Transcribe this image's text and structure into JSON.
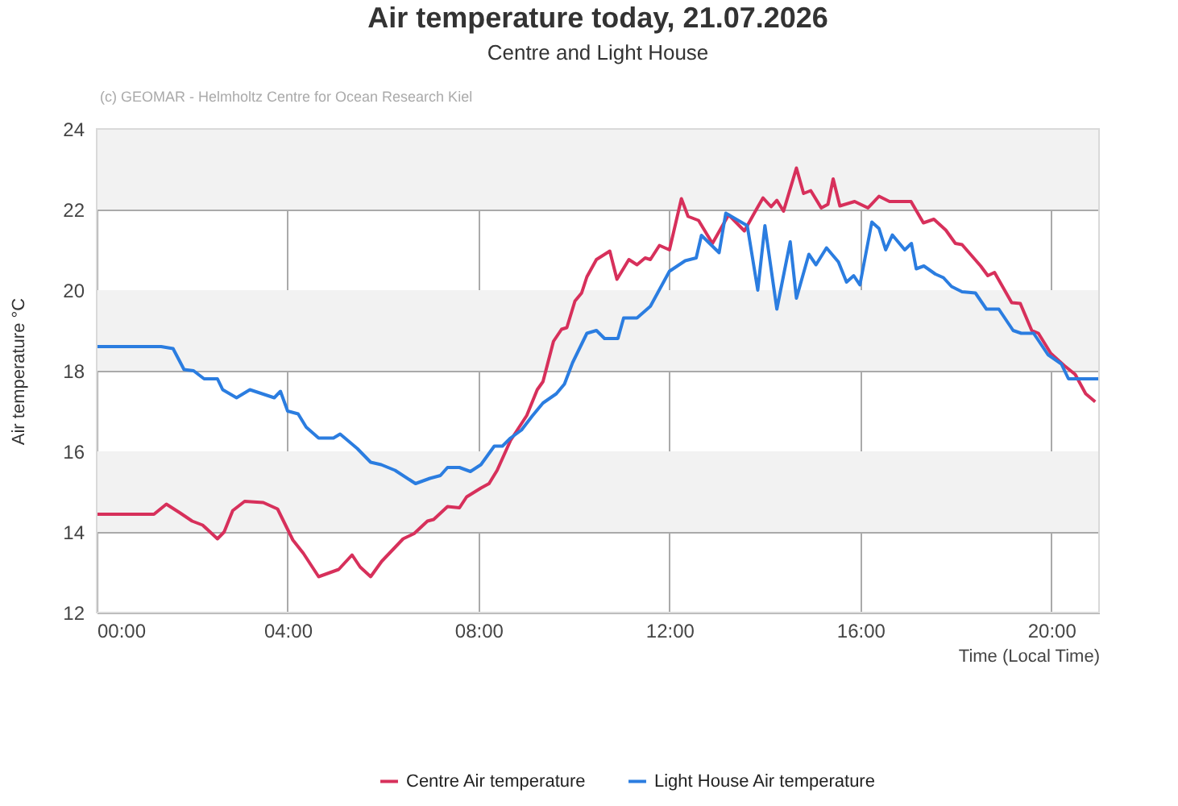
{
  "chart_data": {
    "type": "line",
    "title": "Air temperature today, 21.07.2026",
    "subtitle": "Centre and Light House",
    "annotations": [
      "(c) GEOMAR - Helmholtz Centre for Ocean Research Kiel"
    ],
    "xlabel": "Time (Local Time)",
    "ylabel": "Air temperature °C",
    "xlim": [
      0,
      21
    ],
    "xticks": [
      {
        "value": 0,
        "label": "00:00"
      },
      {
        "value": 4,
        "label": "04:00"
      },
      {
        "value": 8,
        "label": "08:00"
      },
      {
        "value": 12,
        "label": "12:00"
      },
      {
        "value": 16,
        "label": "16:00"
      },
      {
        "value": 20,
        "label": "20:00"
      }
    ],
    "ylim": [
      12,
      24
    ],
    "yticks": [
      12,
      14,
      16,
      18,
      20,
      22,
      24
    ],
    "grid": true,
    "legend": "bottom",
    "line_style": "solid",
    "bands": [
      {
        "axis": "y",
        "from": 14,
        "to": 16,
        "color": "#f2f2f2"
      },
      {
        "axis": "y",
        "from": 18,
        "to": 20,
        "color": "#f2f2f2"
      },
      {
        "axis": "y",
        "from": 22,
        "to": 24,
        "color": "#f2f2f2"
      }
    ],
    "series": [
      {
        "name": "Centre Air temperature",
        "color": "#d7305b",
        "x": [
          0,
          1.2,
          1.46,
          1.75,
          2.0,
          2.22,
          2.53,
          2.67,
          2.85,
          3.1,
          3.49,
          3.79,
          4.11,
          4.33,
          4.65,
          5.07,
          5.35,
          5.52,
          5.74,
          5.97,
          6.42,
          6.65,
          6.93,
          7.06,
          7.35,
          7.6,
          7.75,
          8.05,
          8.22,
          8.39,
          8.67,
          9.01,
          9.23,
          9.35,
          9.57,
          9.74,
          9.85,
          10.02,
          10.16,
          10.27,
          10.47,
          10.75,
          10.9,
          11.15,
          11.32,
          11.49,
          11.6,
          11.79,
          12.0,
          12.25,
          12.39,
          12.61,
          12.9,
          13.24,
          13.57,
          13.8,
          13.96,
          14.13,
          14.25,
          14.39,
          14.66,
          14.81,
          14.96,
          15.18,
          15.32,
          15.43,
          15.57,
          15.88,
          16.16,
          16.39,
          16.61,
          17.06,
          17.32,
          17.54,
          17.79,
          17.99,
          18.13,
          18.52,
          18.67,
          18.81,
          19.17,
          19.35,
          19.59,
          19.73,
          19.99,
          20.27,
          20.5,
          20.72,
          20.92
        ],
        "values": [
          14.44,
          14.44,
          14.69,
          14.47,
          14.27,
          14.17,
          13.83,
          14.0,
          14.53,
          14.76,
          14.73,
          14.57,
          13.8,
          13.47,
          12.89,
          13.07,
          13.43,
          13.13,
          12.89,
          13.27,
          13.83,
          13.96,
          14.27,
          14.31,
          14.63,
          14.6,
          14.87,
          15.09,
          15.2,
          15.53,
          16.27,
          16.89,
          17.53,
          17.73,
          18.73,
          19.03,
          19.07,
          19.73,
          19.93,
          20.33,
          20.76,
          20.97,
          20.27,
          20.76,
          20.63,
          20.8,
          20.76,
          21.11,
          21.0,
          22.27,
          21.83,
          21.73,
          21.16,
          21.87,
          21.47,
          21.96,
          22.29,
          22.07,
          22.23,
          21.96,
          23.03,
          22.4,
          22.47,
          22.04,
          22.13,
          22.76,
          22.09,
          22.2,
          22.04,
          22.33,
          22.2,
          22.2,
          21.67,
          21.76,
          21.49,
          21.16,
          21.13,
          20.6,
          20.36,
          20.44,
          19.69,
          19.67,
          19.0,
          18.93,
          18.43,
          18.13,
          17.91,
          17.43,
          17.23
        ]
      },
      {
        "name": "Light House Air temperature",
        "color": "#2b7de0",
        "x": [
          0,
          1.35,
          1.6,
          1.83,
          2.03,
          2.25,
          2.53,
          2.64,
          2.93,
          3.21,
          3.72,
          3.85,
          4.0,
          4.22,
          4.39,
          4.65,
          4.96,
          5.1,
          5.46,
          5.74,
          5.96,
          6.25,
          6.68,
          6.98,
          7.2,
          7.35,
          7.6,
          7.83,
          8.05,
          8.33,
          8.5,
          8.67,
          8.9,
          9.12,
          9.35,
          9.63,
          9.8,
          9.97,
          10.27,
          10.47,
          10.64,
          10.92,
          11.04,
          11.32,
          11.6,
          12.0,
          12.33,
          12.56,
          12.67,
          13.04,
          13.18,
          13.63,
          13.85,
          14.0,
          14.25,
          14.53,
          14.66,
          14.92,
          15.07,
          15.29,
          15.54,
          15.71,
          15.86,
          15.99,
          16.24,
          16.39,
          16.53,
          16.67,
          16.93,
          17.07,
          17.17,
          17.33,
          17.57,
          17.74,
          17.91,
          18.13,
          18.41,
          18.64,
          18.9,
          19.2,
          19.37,
          19.63,
          19.93,
          20.21,
          20.36,
          21.0
        ],
        "values": [
          18.6,
          18.6,
          18.55,
          18.03,
          18.0,
          17.8,
          17.8,
          17.53,
          17.33,
          17.53,
          17.33,
          17.49,
          17.0,
          16.93,
          16.6,
          16.33,
          16.33,
          16.43,
          16.07,
          15.73,
          15.67,
          15.53,
          15.2,
          15.33,
          15.4,
          15.6,
          15.6,
          15.5,
          15.67,
          16.13,
          16.13,
          16.33,
          16.53,
          16.87,
          17.2,
          17.43,
          17.67,
          18.2,
          18.93,
          19.0,
          18.8,
          18.8,
          19.31,
          19.31,
          19.6,
          20.47,
          20.73,
          20.8,
          21.36,
          20.93,
          21.91,
          21.6,
          20.0,
          21.6,
          19.53,
          21.2,
          19.8,
          20.89,
          20.63,
          21.05,
          20.7,
          20.2,
          20.36,
          20.13,
          21.69,
          21.53,
          21.0,
          21.37,
          21.0,
          21.16,
          20.53,
          20.6,
          20.4,
          20.31,
          20.09,
          19.96,
          19.93,
          19.53,
          19.53,
          19.0,
          18.93,
          18.93,
          18.4,
          18.17,
          17.8,
          17.8
        ]
      }
    ]
  }
}
